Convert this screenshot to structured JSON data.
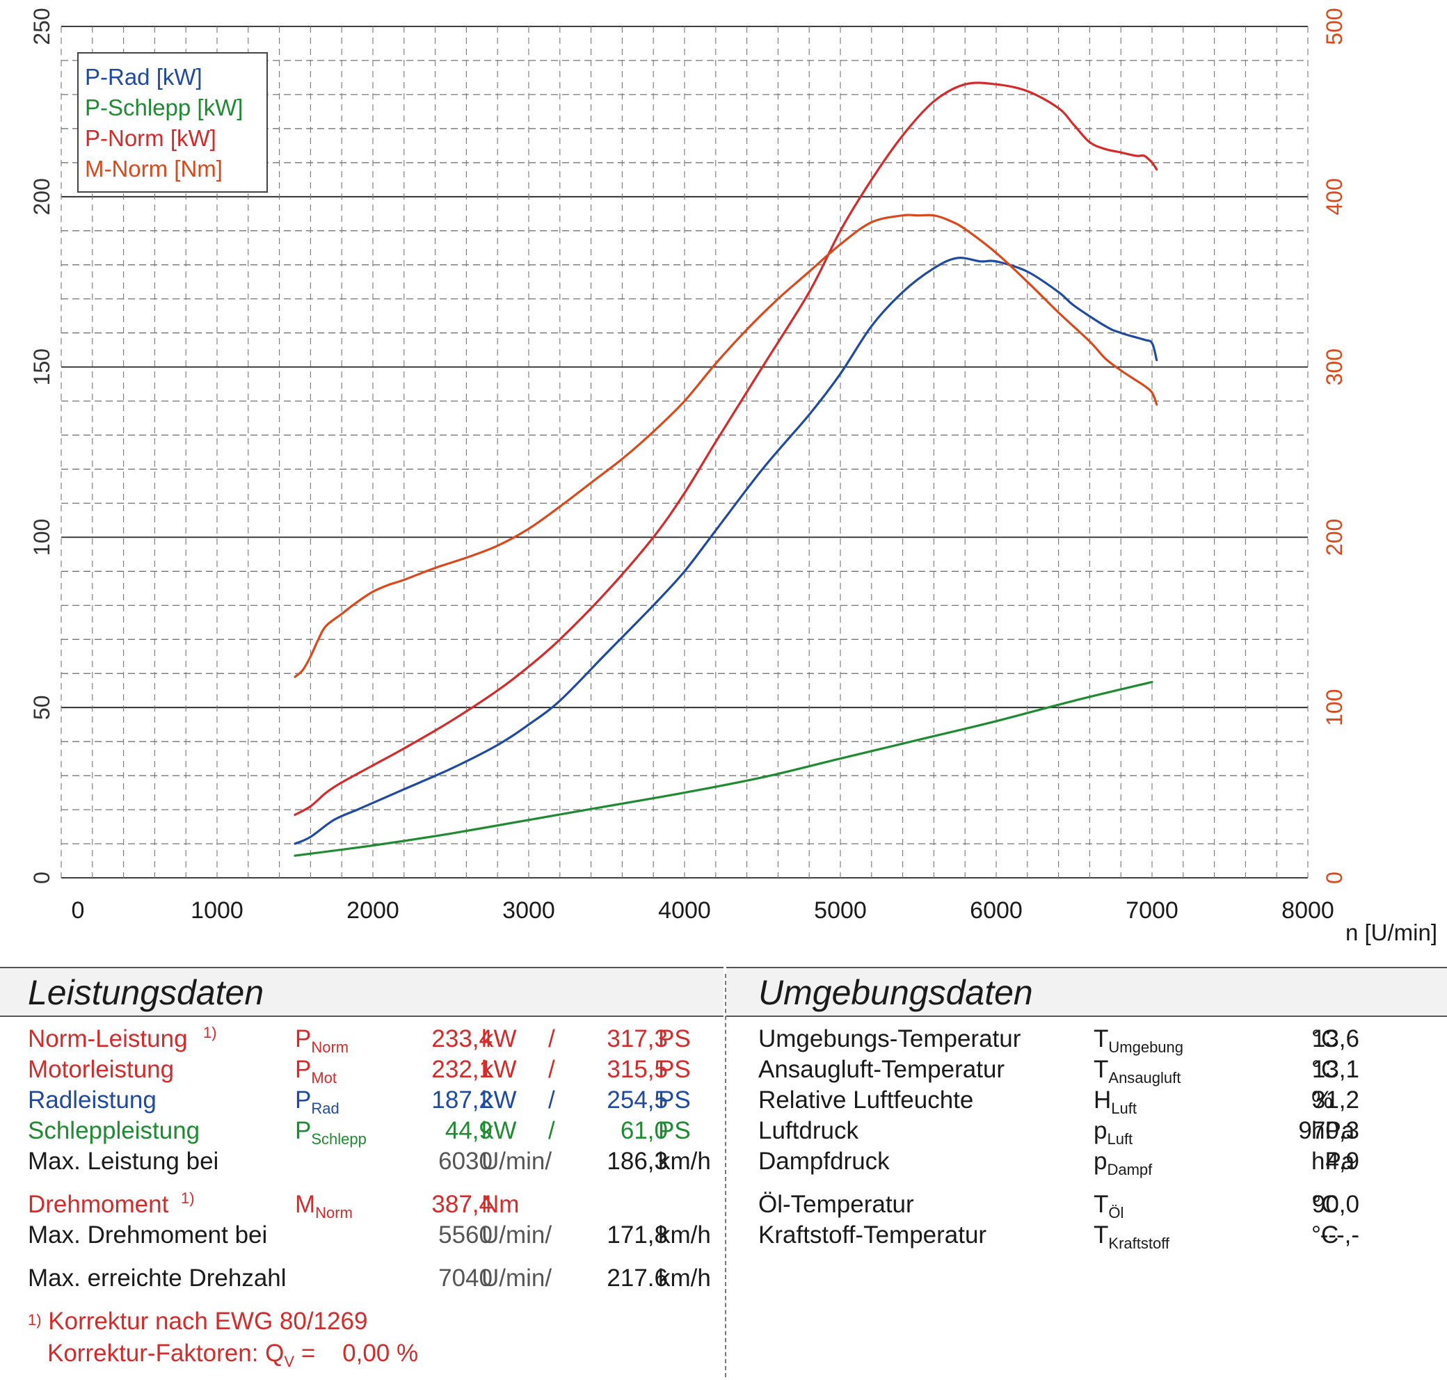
{
  "chart_data": {
    "type": "line",
    "x_axis": {
      "label": "n [U/min]",
      "range": [
        0,
        8000
      ],
      "ticks": [
        "0",
        "1000",
        "2000",
        "3000",
        "4000",
        "5000",
        "6000",
        "7000",
        "8000"
      ]
    },
    "y_left": {
      "range": [
        0,
        250
      ],
      "ticks": [
        "0",
        "50",
        "100",
        "150",
        "200",
        "250"
      ]
    },
    "y_right": {
      "range": [
        0,
        500
      ],
      "ticks": [
        "0",
        "100",
        "200",
        "300",
        "400",
        "500"
      ],
      "color": "#d84a1c"
    },
    "grid": true,
    "legend": {
      "placement": "top-left",
      "entries": [
        "P-Rad [kW]",
        "P-Schlepp [kW]",
        "P-Norm [kW]",
        "M-Norm [Nm]"
      ]
    },
    "series": [
      {
        "name": "P-Rad [kW]",
        "color": "#1f4aa0",
        "axis": "left",
        "x": [
          1500,
          1600,
          1750,
          1900,
          2000,
          2200,
          2500,
          2800,
          3000,
          3200,
          3500,
          3800,
          4000,
          4200,
          4500,
          4800,
          5000,
          5200,
          5400,
          5600,
          5750,
          5900,
          6000,
          6200,
          6400,
          6500,
          6700,
          6800,
          6950,
          7000,
          7030
        ],
        "y": [
          10,
          12,
          17,
          20,
          22,
          26,
          32,
          39,
          45,
          52,
          66,
          80,
          90,
          102,
          120,
          136,
          148,
          162,
          172,
          179,
          182,
          181,
          181,
          178,
          172,
          168,
          162,
          160,
          158,
          157,
          152
        ]
      },
      {
        "name": "P-Schlepp [kW]",
        "color": "#1f8a32",
        "axis": "left",
        "x": [
          1500,
          2000,
          2500,
          3000,
          3500,
          4000,
          4500,
          5000,
          5500,
          6000,
          6500,
          7000
        ],
        "y": [
          6.5,
          9.5,
          13,
          17,
          21,
          25,
          29.5,
          35,
          40.5,
          46,
          52,
          57.5
        ]
      },
      {
        "name": "P-Norm [kW]",
        "color": "#d42a2a",
        "axis": "left",
        "x": [
          1500,
          1600,
          1700,
          1800,
          2000,
          2200,
          2500,
          2800,
          3000,
          3200,
          3500,
          3800,
          4000,
          4200,
          4500,
          4800,
          5000,
          5200,
          5400,
          5600,
          5800,
          6000,
          6200,
          6400,
          6500,
          6600,
          6700,
          6800,
          6900,
          6950,
          7000,
          7030
        ],
        "y": [
          18.5,
          21,
          25,
          28,
          33,
          38,
          46,
          55,
          62,
          70,
          84,
          100,
          113,
          128,
          150,
          172,
          190,
          205,
          218,
          228,
          233,
          233,
          231,
          226,
          221,
          216,
          214,
          213,
          212,
          212,
          210,
          208
        ]
      },
      {
        "name": "M-Norm [Nm]",
        "color": "#d84a1c",
        "axis": "right",
        "x": [
          1500,
          1550,
          1600,
          1650,
          1700,
          1800,
          1900,
          2000,
          2100,
          2200,
          2400,
          2600,
          2800,
          3000,
          3200,
          3400,
          3600,
          3800,
          4000,
          4200,
          4400,
          4600,
          4800,
          5000,
          5200,
          5400,
          5500,
          5600,
          5700,
          5800,
          6000,
          6200,
          6400,
          6600,
          6700,
          6800,
          6900,
          6950,
          7000,
          7030
        ],
        "y": [
          118,
          122,
          130,
          140,
          148,
          155,
          162,
          168,
          172,
          175,
          182,
          188,
          195,
          205,
          218,
          232,
          246,
          262,
          280,
          302,
          322,
          340,
          356,
          372,
          385,
          389,
          389,
          389,
          386,
          381,
          367,
          350,
          332,
          315,
          305,
          298,
          292,
          289,
          285,
          278
        ]
      }
    ]
  },
  "panels": {
    "left_title": "Leistungsdaten",
    "right_title": "Umgebungsdaten",
    "left_rows": [
      {
        "label": "Norm-Leistung",
        "footnote": "1)",
        "sym": "P",
        "sub": "Norm",
        "v1": "233,4",
        "u1": "kW",
        "sep": "/",
        "v2": "317,3",
        "u2": "PS"
      },
      {
        "label": "Motorleistung",
        "sym": "P",
        "sub": "Mot",
        "v1": "232,1",
        "u1": "kW",
        "sep": "/",
        "v2": "315,5",
        "u2": "PS"
      },
      {
        "label": "Radleistung",
        "sym": "P",
        "sub": "Rad",
        "v1": "187,2",
        "u1": "kW",
        "sep": "/",
        "v2": "254,5",
        "u2": "PS"
      },
      {
        "label": "Schleppleistung",
        "sym": "P",
        "sub": "Schlepp",
        "v1": "44,9",
        "u1": "kW",
        "sep": "/",
        "v2": "61,0",
        "u2": "PS"
      },
      {
        "label": "Max. Leistung bei",
        "v1": "6030",
        "u1": "U/min/",
        "v2": "186,3",
        "u2": "km/h"
      },
      {
        "label": "Drehmoment",
        "footnote": "1)",
        "sym": "M",
        "sub": "Norm",
        "v1": "387,4",
        "u1": "Nm"
      },
      {
        "label": "Max. Drehmoment bei",
        "v1": "5560",
        "u1": "U/min/",
        "v2": "171,8",
        "u2": "km/h"
      },
      {
        "label": "Max. erreichte Drehzahl",
        "v1": "7040",
        "u1": "U/min/",
        "v2": "217.6",
        "u2": "km/h"
      }
    ],
    "right_rows": [
      {
        "label": "Umgebungs-Temperatur",
        "sym": "T",
        "sub": "Umgebung",
        "value": "13,6",
        "unit": "°C"
      },
      {
        "label": "Ansaugluft-Temperatur",
        "sym": "T",
        "sub": "Ansaugluft",
        "value": "13,1",
        "unit": "°C"
      },
      {
        "label": "Relative Luftfeuchte",
        "sym": "H",
        "sub": "Luft",
        "value": "31,2",
        "unit": "%"
      },
      {
        "label": "Luftdruck",
        "sym": "p",
        "sub": "Luft",
        "value": "970,3",
        "unit": "hPa"
      },
      {
        "label": "Dampfdruck",
        "sym": "p",
        "sub": "Dampf",
        "value": "4,9",
        "unit": "hPa"
      },
      {
        "label": "Öl-Temperatur",
        "sym": "T",
        "sub": "Öl",
        "value": "90,0",
        "unit": "°C"
      },
      {
        "label": "Kraftstoff-Temperatur",
        "sym": "T",
        "sub": "Kraftstoff",
        "value": "---,-",
        "unit": "°C"
      }
    ],
    "footnote_1": "Korrektur nach EWG 80/1269",
    "footnote_mark": "1)",
    "footnote_2_label": "Korrektur-Faktoren: Q",
    "footnote_2_sub": "V",
    "footnote_2_value": "=    0,00 %"
  }
}
